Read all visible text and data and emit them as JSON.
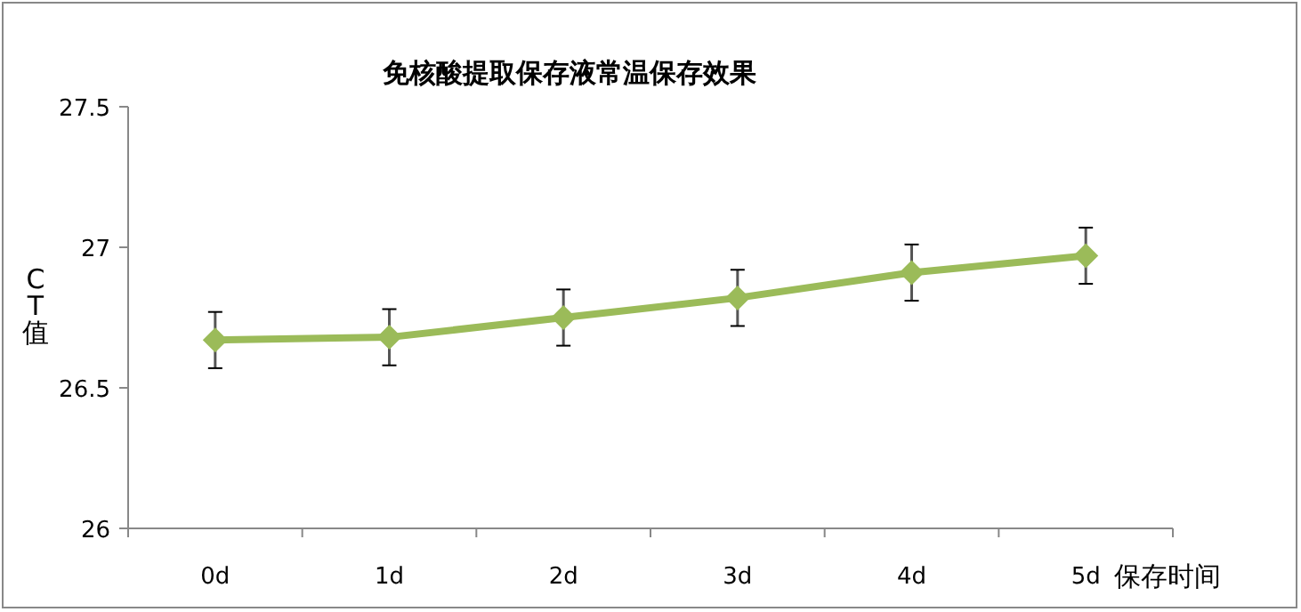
{
  "chart_data": {
    "type": "line",
    "title": "免核酸提取保存液常温保存效果",
    "xlabel": "保存时间",
    "ylabel": "CT值",
    "categories": [
      "0d",
      "1d",
      "2d",
      "3d",
      "4d",
      "5d"
    ],
    "series": [
      {
        "color": "#9bbb59",
        "values": [
          26.67,
          26.68,
          26.75,
          26.82,
          26.91,
          26.97
        ],
        "errors": [
          0.1,
          0.1,
          0.1,
          0.1,
          0.1,
          0.1
        ]
      }
    ],
    "ylim": [
      26,
      27.5
    ],
    "yticks": [
      26,
      26.5,
      27,
      27.5
    ],
    "grid": false,
    "marker": "diamond",
    "line_style": "solid"
  }
}
